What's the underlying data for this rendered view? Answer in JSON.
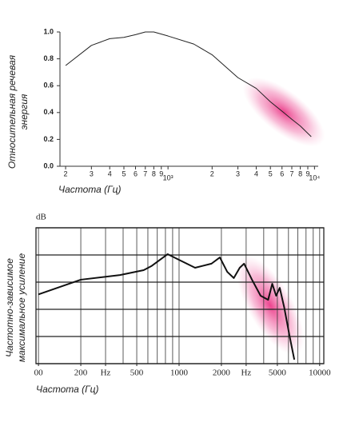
{
  "chart_data": [
    {
      "type": "line",
      "xscale": "log",
      "ylabel": [
        "Относительная речевая",
        "энергия"
      ],
      "xlabel": "Частота (Гц)",
      "x": [
        200,
        300,
        400,
        500,
        600,
        700,
        800,
        1000,
        1500,
        2000,
        3000,
        4000,
        5000,
        6000,
        7000,
        8000,
        9500
      ],
      "series": [
        {
          "color": "#222",
          "values": [
            0.75,
            0.9,
            0.95,
            0.96,
            0.98,
            1.0,
            1.0,
            0.97,
            0.91,
            0.83,
            0.66,
            0.58,
            0.48,
            0.41,
            0.35,
            0.3,
            0.22
          ]
        }
      ],
      "xlim": [
        183,
        10600
      ],
      "ylim": [
        0,
        1
      ],
      "xticks": [
        {
          "value": 200,
          "label": "2"
        },
        {
          "value": 300,
          "label": "3"
        },
        {
          "value": 400,
          "label": "4"
        },
        {
          "value": 500,
          "label": "5"
        },
        {
          "value": 600,
          "label": "6"
        },
        {
          "value": 700,
          "label": "7"
        },
        {
          "value": 800,
          "label": "8"
        },
        {
          "value": 900,
          "label": "9"
        },
        {
          "value": 1000,
          "label": "10³"
        },
        {
          "value": 2000,
          "label": "2"
        },
        {
          "value": 3000,
          "label": "3"
        },
        {
          "value": 4000,
          "label": "4"
        },
        {
          "value": 5000,
          "label": "5"
        },
        {
          "value": 6000,
          "label": "6"
        },
        {
          "value": 7000,
          "label": "7"
        },
        {
          "value": 8000,
          "label": "8"
        },
        {
          "value": 9000,
          "label": "9"
        },
        {
          "value": 10000,
          "label": "10⁴"
        }
      ],
      "yticks": [
        {
          "value": 0,
          "label": "0.0"
        },
        0.2,
        0.4,
        0.6,
        0.8,
        {
          "value": 1,
          "label": "1.0"
        }
      ]
    },
    {
      "type": "line",
      "xscale": "log",
      "unit_label": "dB",
      "ylabel": [
        "Частотно-зависимое",
        "максимальное усиление"
      ],
      "xlabel": "Частота (Гц)",
      "x": [
        100,
        200,
        380,
        560,
        640,
        830,
        1000,
        1300,
        1700,
        1950,
        2200,
        2450,
        2700,
        2900,
        3300,
        3800,
        4300,
        4600,
        4900,
        5200,
        5600,
        6100,
        6600
      ],
      "series": [
        {
          "color": "#111",
          "values": [
            2.55,
            3.09,
            3.26,
            3.44,
            3.6,
            4.03,
            3.82,
            3.53,
            3.68,
            3.91,
            3.38,
            3.15,
            3.53,
            3.68,
            3.09,
            2.5,
            2.35,
            2.94,
            2.5,
            2.79,
            2.06,
            1.03,
            0.15
          ]
        }
      ],
      "xlim": [
        96,
        10700
      ],
      "ylim": [
        0,
        5
      ],
      "xticks": [
        {
          "value": 100,
          "label": "00"
        },
        200,
        {
          "value": 300,
          "label": "Hz"
        },
        500,
        1000,
        2000,
        {
          "value": 3000,
          "label": "Hz"
        },
        5000,
        10000
      ],
      "xgrid": [
        100,
        200,
        300,
        400,
        500,
        600,
        700,
        800,
        900,
        1000,
        2000,
        3000,
        4000,
        5000,
        6000,
        7000,
        8000,
        9000,
        10000
      ],
      "ygrid": [
        0,
        1,
        2,
        3,
        4,
        5
      ]
    }
  ]
}
